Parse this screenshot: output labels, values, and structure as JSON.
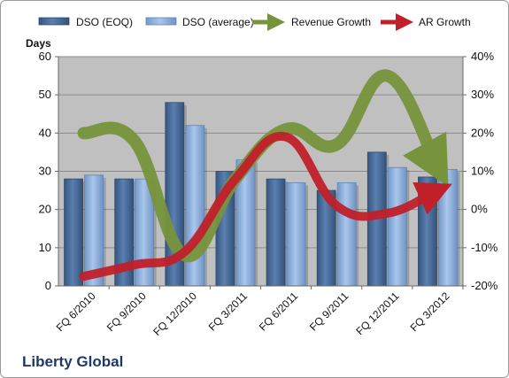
{
  "company": "Liberty Global",
  "colors": {
    "plot_bg": "#c0c0c0",
    "eoq_bar": "#4a6d9c",
    "avg_bar": "#8fb1df",
    "revenue_line": "#77933c",
    "ar_line": "#c0202a"
  },
  "chart_data": {
    "type": "bar",
    "categories": [
      "FQ 6/2010",
      "FQ 9/2010",
      "FQ 12/2010",
      "FQ 3/2011",
      "FQ 6/2011",
      "FQ 9/2011",
      "FQ 12/2011",
      "FQ 3/2012"
    ],
    "left_axis": {
      "label": "Days",
      "ylim": [
        0,
        60
      ],
      "ticks": [
        "0",
        "10",
        "20",
        "30",
        "40",
        "50",
        "60"
      ]
    },
    "right_axis": {
      "ylim": [
        -20,
        40
      ],
      "ticks": [
        "-20%",
        "-10%",
        "0%",
        "10%",
        "20%",
        "30%",
        "40%"
      ]
    },
    "series": [
      {
        "name": "DSO (EOQ)",
        "type": "bar",
        "axis": "left",
        "values": [
          28,
          28,
          48,
          30,
          28,
          25,
          35,
          28.5
        ]
      },
      {
        "name": "DSO (average)",
        "type": "bar",
        "axis": "left",
        "values": [
          29,
          28,
          42,
          33,
          27,
          27,
          31,
          30.5
        ]
      },
      {
        "name": "Revenue Growth",
        "type": "line",
        "axis": "right",
        "values": [
          20,
          18,
          -12,
          8,
          21,
          17,
          35,
          11
        ]
      },
      {
        "name": "AR Growth",
        "type": "line",
        "axis": "right",
        "values": [
          -17.5,
          -14.5,
          -11,
          8,
          19,
          1,
          -1,
          5
        ]
      }
    ],
    "grid": true,
    "legend": "top"
  }
}
